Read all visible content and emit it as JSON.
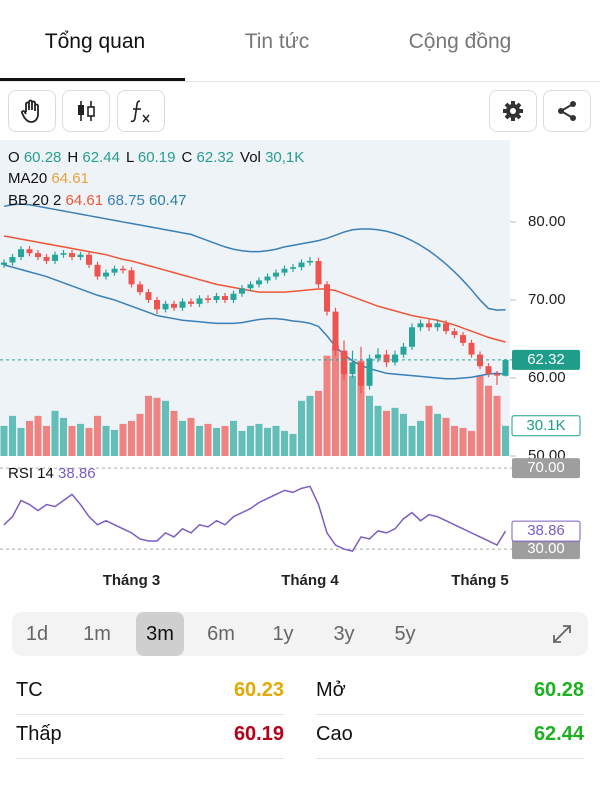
{
  "tabs": [
    "Tổng quan",
    "Tin tức",
    "Cộng đồng"
  ],
  "chart_data": {
    "type": "candlestick",
    "categories": [
      null,
      null,
      null,
      null,
      null,
      null,
      null,
      null,
      null,
      null,
      null,
      null,
      null,
      null,
      null,
      "Tháng 3",
      null,
      null,
      null,
      null,
      null,
      null,
      null,
      null,
      null,
      null,
      null,
      null,
      null,
      null,
      null,
      null,
      null,
      null,
      null,
      null,
      "Tháng 4",
      null,
      null,
      null,
      null,
      null,
      null,
      null,
      null,
      null,
      null,
      null,
      null,
      null,
      null,
      null,
      null,
      null,
      null,
      null,
      "Tháng 5",
      null,
      null,
      null
    ],
    "open": [
      74.5,
      74.8,
      75.5,
      76.5,
      76,
      75.5,
      75,
      75.8,
      76,
      75.5,
      75.8,
      74.5,
      73,
      73.5,
      74,
      73.8,
      72,
      71,
      70,
      68.8,
      69.5,
      69,
      69.8,
      69.5,
      70.2,
      70,
      70.5,
      70,
      70.8,
      71.5,
      72,
      72.5,
      73,
      73.5,
      74,
      74.2,
      74.8,
      75,
      72,
      68.5,
      63.5,
      60.5,
      62,
      59,
      62.5,
      63,
      62,
      63,
      64,
      66.5,
      67,
      66.5,
      67,
      66,
      65.5,
      64.5,
      63,
      61.5,
      60.5,
      60.28
    ],
    "high": [
      75.2,
      75.9,
      76.9,
      76.9,
      76.4,
      75.9,
      76.2,
      76.4,
      76.4,
      76.2,
      76.2,
      74.9,
      73.9,
      74.4,
      74.4,
      74.2,
      72.4,
      71.4,
      70.4,
      69.9,
      69.9,
      70.2,
      70.2,
      70.6,
      70.6,
      70.9,
      70.9,
      71.2,
      71.9,
      72.4,
      72.9,
      73.4,
      73.9,
      74.4,
      74.6,
      75.2,
      75.5,
      75.4,
      72.4,
      69,
      64.8,
      63.5,
      64,
      63,
      63.8,
      63.6,
      63.5,
      64.5,
      67,
      67.5,
      67.5,
      67.4,
      67.4,
      66.4,
      65.9,
      64.9,
      63.4,
      61.9,
      60.9,
      62.44
    ],
    "low": [
      74.1,
      74.4,
      75.1,
      75.6,
      75.1,
      74.6,
      74.6,
      75.4,
      75.1,
      75.1,
      74.1,
      72.6,
      72.6,
      73.1,
      73.4,
      71.6,
      70.6,
      69.6,
      68.2,
      68.4,
      68.6,
      68.6,
      69.1,
      69.1,
      69.6,
      69.6,
      69.6,
      69.6,
      70.4,
      71.1,
      71.6,
      72.1,
      72.6,
      73.1,
      73.6,
      73.8,
      74.4,
      71.5,
      68,
      62.8,
      59.8,
      60,
      58,
      58.5,
      62,
      61.4,
      61.6,
      62.6,
      63.6,
      66,
      66,
      66,
      65.6,
      65.1,
      64.1,
      62.6,
      61.1,
      60.1,
      59.1,
      60.19
    ],
    "close": [
      74.8,
      75.5,
      76.5,
      76,
      75.5,
      75,
      75.8,
      76,
      75.5,
      75.8,
      74.5,
      73,
      73.5,
      74,
      73.8,
      72,
      71,
      70,
      68.8,
      69.5,
      69,
      69.8,
      69.5,
      70.2,
      70,
      70.5,
      70,
      70.8,
      71.5,
      72,
      72.5,
      73,
      73.5,
      74,
      74.2,
      74.8,
      75,
      72,
      68.5,
      63.5,
      60.5,
      62,
      59,
      62.5,
      63,
      62,
      63,
      64,
      66.5,
      67,
      66.5,
      67,
      66,
      65.5,
      64.5,
      63,
      61.5,
      60.5,
      60.3,
      62.32
    ],
    "up_color": "#26a69a",
    "down_color": "#ef5350",
    "info_labels": [
      "O",
      "H",
      "L",
      "C",
      "Vol"
    ],
    "ylim": [
      50,
      90.5
    ],
    "yticks": [
      {
        "value": 80,
        "label": "80.00"
      },
      {
        "value": 70,
        "label": "70.00"
      },
      {
        "value": 60,
        "label": "60.00"
      },
      {
        "value": 50,
        "label": "50.00"
      }
    ],
    "ma": {
      "name": "MA20",
      "color": "#f05537",
      "values": [
        78.2,
        78,
        77.8,
        77.6,
        77.4,
        77.2,
        77,
        76.8,
        76.6,
        76.4,
        76.2,
        76,
        75.8,
        75.5,
        75.2,
        75,
        74.7,
        74.4,
        74.1,
        73.8,
        73.5,
        73.2,
        72.9,
        72.6,
        72.3,
        72,
        71.8,
        71.6,
        71.4,
        71.2,
        71,
        71,
        71,
        71,
        71.1,
        71.2,
        71.3,
        71.4,
        71.4,
        71.2,
        70.8,
        70.4,
        70,
        69.6,
        69.2,
        68.9,
        68.6,
        68.3,
        68,
        67.8,
        67.6,
        67.4,
        67.1,
        66.8,
        66.4,
        66,
        65.6,
        65.2,
        64.9,
        64.61
      ]
    },
    "bb": {
      "name": "BB 20 2",
      "color": "#3a7fb5",
      "upper": [
        82,
        82.2,
        82.3,
        82.2,
        82,
        81.8,
        81.6,
        81.4,
        81.2,
        81,
        80.8,
        80.6,
        80.4,
        80.2,
        80,
        79.8,
        79.6,
        79.4,
        79.2,
        79,
        78.8,
        78.6,
        78.4,
        78,
        77.6,
        77.2,
        76.8,
        76.5,
        76.3,
        76.2,
        76.2,
        76.3,
        76.5,
        76.8,
        77,
        77.2,
        77.4,
        77.6,
        77.9,
        78.3,
        78.7,
        79,
        79.1,
        79.1,
        79,
        78.8,
        78.5,
        78.1,
        77.6,
        77,
        76.3,
        75.5,
        74.6,
        73.6,
        72.5,
        71.3,
        70,
        68.9,
        68.7,
        68.75
      ],
      "lower": [
        74.5,
        74.2,
        73.9,
        73.6,
        73.3,
        73,
        72.6,
        72.2,
        71.8,
        71.4,
        71,
        70.6,
        70.3,
        70,
        69.6,
        69.2,
        68.8,
        68.4,
        68,
        67.8,
        67.6,
        67.4,
        67.3,
        67.2,
        67.1,
        67,
        67,
        67,
        67.1,
        67.3,
        67.5,
        67.6,
        67.6,
        67.5,
        67.3,
        67.2,
        67,
        66.6,
        65.4,
        64,
        63,
        62.2,
        61.6,
        61.2,
        60.9,
        60.6,
        60.5,
        60.4,
        60.3,
        60.2,
        60.1,
        60,
        59.9,
        59.9,
        60,
        60.1,
        60.3,
        60.5,
        60.6,
        60.47
      ]
    },
    "volume": {
      "info_label": "30,1K",
      "last_label": "30.1K",
      "ylim": [
        0,
        315
      ],
      "values": [
        30,
        40,
        28,
        35,
        40,
        30,
        45,
        38,
        30,
        32,
        28,
        40,
        30,
        26,
        32,
        35,
        42,
        60,
        58,
        55,
        45,
        35,
        38,
        30,
        32,
        28,
        30,
        35,
        25,
        30,
        32,
        28,
        30,
        25,
        22,
        55,
        60,
        65,
        100,
        110,
        105,
        80,
        95,
        60,
        50,
        45,
        48,
        42,
        30,
        35,
        50,
        42,
        38,
        30,
        28,
        25,
        80,
        70,
        60,
        30.1
      ]
    },
    "rsi": {
      "name": "RSI 14",
      "color": "#7b5cc4",
      "ylim": [
        24.6,
        74
      ],
      "yticks": [
        {
          "value": 70,
          "label": "70.00"
        },
        {
          "value": 30,
          "label": "30.00"
        }
      ],
      "values": [
        42,
        46,
        54,
        52,
        49,
        52,
        51,
        54,
        57,
        52,
        46,
        42,
        44,
        42,
        40,
        38,
        35,
        34,
        34,
        38,
        36,
        40,
        38,
        42,
        41,
        44,
        42,
        46,
        48,
        50,
        53,
        55,
        57,
        59,
        58,
        60,
        61,
        52,
        38,
        32,
        30,
        29,
        36,
        35,
        39,
        38,
        40,
        45,
        48,
        44,
        47,
        46,
        44,
        42,
        40,
        38,
        36,
        34,
        32,
        38.86
      ]
    }
  },
  "periods": {
    "items": [
      "1d",
      "1m",
      "3m",
      "6m",
      "1y",
      "3y",
      "5y"
    ],
    "selected": "3m"
  },
  "stats": [
    {
      "label": "TC",
      "value": "60.23",
      "color": "#e3a900"
    },
    {
      "label": "Mở",
      "value": "60.28",
      "color": "#1fb020"
    },
    {
      "label": "Thấp",
      "value": "60.19",
      "color": "#b3001b"
    },
    {
      "label": "Cao",
      "value": "62.44",
      "color": "#1fb020"
    }
  ]
}
